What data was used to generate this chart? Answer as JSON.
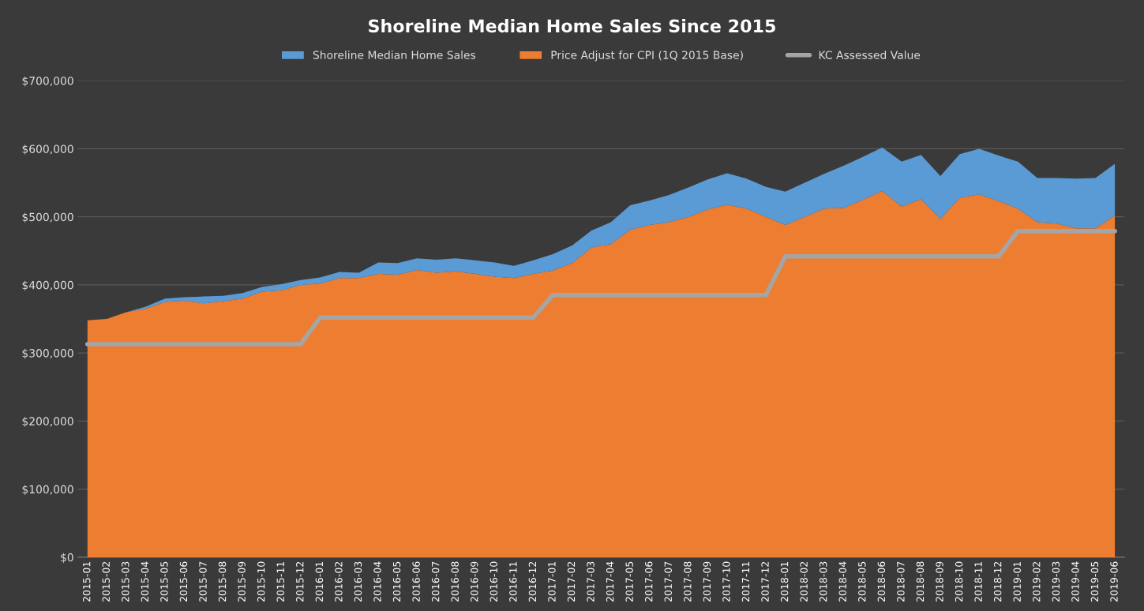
{
  "chart_data": {
    "type": "area",
    "title": "Shoreline Median Home Sales Since 2015",
    "categories": [
      "2015-01",
      "2015-02",
      "2015-03",
      "2015-04",
      "2015-05",
      "2015-06",
      "2015-07",
      "2015-08",
      "2015-09",
      "2015-10",
      "2015-11",
      "2015-12",
      "2016-01",
      "2016-02",
      "2016-03",
      "2016-04",
      "2016-05",
      "2016-06",
      "2016-07",
      "2016-08",
      "2016-09",
      "2016-10",
      "2016-11",
      "2016-12",
      "2017-01",
      "2017-02",
      "2017-03",
      "2017-04",
      "2017-05",
      "2017-06",
      "2017-07",
      "2017-08",
      "2017-09",
      "2017-10",
      "2017-11",
      "2017-12",
      "2018-01",
      "2018-02",
      "2018-03",
      "2018-04",
      "2018-05",
      "2018-06",
      "2018-07",
      "2018-08",
      "2018-09",
      "2018-10",
      "2018-11",
      "2018-12",
      "2019-01",
      "2019-02",
      "2019-03",
      "2019-04",
      "2019-05",
      "2019-06"
    ],
    "series": [
      {
        "name": "Shoreline Median Home Sales",
        "color": "#5b9bd5",
        "values": [
          348000,
          350000,
          360000,
          368000,
          380000,
          382000,
          383000,
          384000,
          388000,
          397000,
          401000,
          407000,
          411000,
          419000,
          418000,
          433000,
          432000,
          439000,
          437000,
          439000,
          436000,
          433000,
          428000,
          436000,
          445000,
          458000,
          480000,
          492000,
          517000,
          524000,
          532000,
          543000,
          555000,
          564000,
          556000,
          544000,
          537000,
          550000,
          563000,
          575000,
          588000,
          602000,
          581000,
          591000,
          560000,
          592000,
          600000,
          590000,
          581000,
          557000,
          557000,
          556000,
          557000,
          578000
        ]
      },
      {
        "name": "Price Adjust for CPI (1Q 2015 Base)",
        "color": "#ed7d31",
        "values": [
          348000,
          350000,
          360000,
          365000,
          375000,
          377000,
          373000,
          376000,
          380000,
          390000,
          392000,
          400000,
          402000,
          410000,
          410000,
          416000,
          415000,
          422000,
          418000,
          420000,
          416000,
          412000,
          410000,
          416000,
          421000,
          432000,
          455000,
          460000,
          481000,
          488000,
          492000,
          500000,
          511000,
          518000,
          512000,
          500000,
          488000,
          500000,
          512000,
          513000,
          525000,
          538000,
          515000,
          526000,
          497000,
          528000,
          533000,
          523000,
          512000,
          492000,
          490000,
          483000,
          483000,
          502000
        ]
      },
      {
        "name": "KC Assessed Value",
        "type": "line",
        "color": "#a5a5a5",
        "values": [
          313000,
          313000,
          313000,
          313000,
          313000,
          313000,
          313000,
          313000,
          313000,
          313000,
          313000,
          313000,
          352000,
          352000,
          352000,
          352000,
          352000,
          352000,
          352000,
          352000,
          352000,
          352000,
          352000,
          352000,
          385000,
          385000,
          385000,
          385000,
          385000,
          385000,
          385000,
          385000,
          385000,
          385000,
          385000,
          385000,
          442000,
          442000,
          442000,
          442000,
          442000,
          442000,
          442000,
          442000,
          442000,
          442000,
          442000,
          442000,
          479000,
          479000,
          479000,
          479000,
          479000,
          479000
        ]
      }
    ],
    "ylim": [
      0,
      700000
    ],
    "yticks": [
      {
        "value": 0,
        "label": "$0"
      },
      {
        "value": 100000,
        "label": "$100,000"
      },
      {
        "value": 200000,
        "label": "$200,000"
      },
      {
        "value": 300000,
        "label": "$300,000"
      },
      {
        "value": 400000,
        "label": "$400,000"
      },
      {
        "value": 500000,
        "label": "$500,000"
      },
      {
        "value": 600000,
        "label": "$600,000"
      },
      {
        "value": 700000,
        "label": "$700,000"
      }
    ],
    "grid": "y",
    "legend": "top",
    "line_style": "solid",
    "marker": "none"
  }
}
